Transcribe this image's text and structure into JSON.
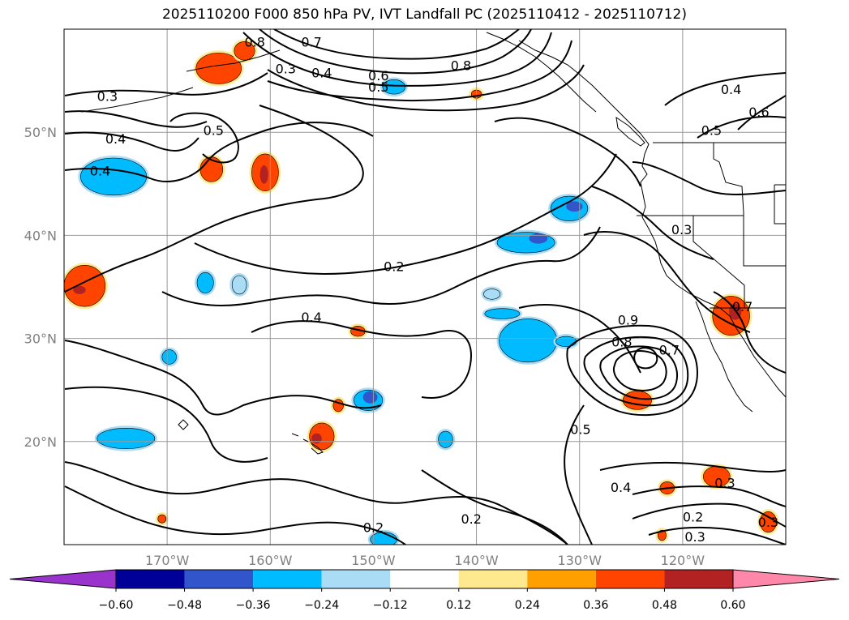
{
  "chart_data": {
    "type": "contour-map",
    "title": "2025110200 F000 850 hPa PV, IVT Landfall PC (2025110412 - 2025110712)",
    "lon_range": [
      -180,
      -110
    ],
    "lat_range": [
      10,
      60
    ],
    "x_ticks": [
      {
        "lon": -170,
        "label": "170°W"
      },
      {
        "lon": -160,
        "label": "160°W"
      },
      {
        "lon": -150,
        "label": "150°W"
      },
      {
        "lon": -140,
        "label": "140°W"
      },
      {
        "lon": -130,
        "label": "130°W"
      },
      {
        "lon": -120,
        "label": "120°W"
      }
    ],
    "y_ticks": [
      {
        "lat": 20,
        "label": "20°N"
      },
      {
        "lat": 30,
        "label": "30°N"
      },
      {
        "lat": 40,
        "label": "40°N"
      },
      {
        "lat": 50,
        "label": "50°N"
      }
    ],
    "grid": true,
    "colorbar": {
      "orientation": "horizontal",
      "extend": "both",
      "levels": [
        "−0.60",
        "−0.48",
        "−0.36",
        "−0.24",
        "−0.12",
        "0.12",
        "0.24",
        "0.36",
        "0.48",
        "0.60"
      ],
      "colors": [
        "#9933cc",
        "#000099",
        "#3355cc",
        "#00bbff",
        "#aaddf5",
        "#ffffff",
        "#ffe98f",
        "#ffa000",
        "#ff4400",
        "#b22222",
        "#ff88aa"
      ]
    },
    "pv_contour_labels": [
      {
        "lon": -161.5,
        "lat": 58.8,
        "text": "0.8"
      },
      {
        "lon": -156,
        "lat": 58.8,
        "text": "0.7"
      },
      {
        "lon": -141.5,
        "lat": 56.5,
        "text": "0.8"
      },
      {
        "lon": -149.5,
        "lat": 55.5,
        "text": "0.6"
      },
      {
        "lon": -158.5,
        "lat": 56.2,
        "text": "0.3"
      },
      {
        "lon": -155,
        "lat": 55.8,
        "text": "0.4"
      },
      {
        "lon": -149.5,
        "lat": 54.4,
        "text": "0.5"
      },
      {
        "lon": -175.8,
        "lat": 53.5,
        "text": "0.3"
      },
      {
        "lon": -165.5,
        "lat": 50.2,
        "text": "0.5"
      },
      {
        "lon": -175,
        "lat": 49.4,
        "text": "0.4"
      },
      {
        "lon": -176.5,
        "lat": 46.3,
        "text": "0.4"
      },
      {
        "lon": -115.3,
        "lat": 54.2,
        "text": "0.4"
      },
      {
        "lon": -112.6,
        "lat": 52,
        "text": "0.6"
      },
      {
        "lon": -117.2,
        "lat": 50.2,
        "text": "0.5"
      },
      {
        "lon": -120.1,
        "lat": 40.6,
        "text": "0.3"
      },
      {
        "lon": -148,
        "lat": 37,
        "text": "0.2"
      },
      {
        "lon": -156,
        "lat": 32.1,
        "text": "0.4"
      },
      {
        "lon": -125.3,
        "lat": 31.8,
        "text": "0.9"
      },
      {
        "lon": -125.9,
        "lat": 29.7,
        "text": "0.8"
      },
      {
        "lon": -121.3,
        "lat": 28.9,
        "text": "0.7"
      },
      {
        "lon": -114.2,
        "lat": 33.1,
        "text": "0.7"
      },
      {
        "lon": -129.9,
        "lat": 21.2,
        "text": "0.5"
      },
      {
        "lon": -126,
        "lat": 15.6,
        "text": "0.4"
      },
      {
        "lon": -115.9,
        "lat": 16,
        "text": "0.3"
      },
      {
        "lon": -119,
        "lat": 12.7,
        "text": "0.2"
      },
      {
        "lon": -111.7,
        "lat": 12.2,
        "text": "0.3"
      },
      {
        "lon": -118.8,
        "lat": 10.8,
        "text": "0.3"
      },
      {
        "lon": -140.5,
        "lat": 12.5,
        "text": "0.2"
      },
      {
        "lon": -150,
        "lat": 11.7,
        "text": "0.2"
      }
    ],
    "fill_patches": [
      {
        "lon": -175.2,
        "lat": 45.7,
        "rx": 3.2,
        "ry": 1.8,
        "level": "-0.36"
      },
      {
        "lon": -174,
        "lat": 20.3,
        "rx": 2.8,
        "ry": 1.0,
        "level": "-0.36"
      },
      {
        "lon": -135.2,
        "lat": 39.3,
        "rx": 2.8,
        "ry": 1.0,
        "level": "-0.36"
      },
      {
        "lon": -131,
        "lat": 42.6,
        "rx": 1.8,
        "ry": 1.2,
        "level": "-0.36"
      },
      {
        "lon": -135,
        "lat": 29.8,
        "rx": 2.8,
        "ry": 2.1,
        "level": "-0.36"
      },
      {
        "lon": -137.5,
        "lat": 32.4,
        "rx": 1.7,
        "ry": 0.5,
        "level": "-0.36"
      },
      {
        "lon": -150.5,
        "lat": 24,
        "rx": 1.4,
        "ry": 1.0,
        "level": "-0.36"
      },
      {
        "lon": -143,
        "lat": 20.2,
        "rx": 0.7,
        "ry": 0.8,
        "level": "-0.36"
      },
      {
        "lon": -149,
        "lat": 10.5,
        "rx": 1.3,
        "ry": 0.7,
        "level": "-0.36"
      },
      {
        "lon": -166.3,
        "lat": 35.4,
        "rx": 0.8,
        "ry": 1.0,
        "level": "-0.36"
      },
      {
        "lon": -163,
        "lat": 35.2,
        "rx": 0.7,
        "ry": 0.9,
        "level": "-0.24"
      },
      {
        "lon": -148,
        "lat": 54.4,
        "rx": 1.1,
        "ry": 0.7,
        "level": "-0.36"
      },
      {
        "lon": -131.3,
        "lat": 29.7,
        "rx": 1.0,
        "ry": 0.5,
        "level": "-0.36"
      },
      {
        "lon": -169.8,
        "lat": 28.2,
        "rx": 0.7,
        "ry": 0.7,
        "level": "-0.36"
      },
      {
        "lon": -138.5,
        "lat": 34.3,
        "rx": 0.8,
        "ry": 0.5,
        "level": "-0.24"
      },
      {
        "lon": -165,
        "lat": 56.2,
        "rx": 2.2,
        "ry": 1.5,
        "level": "0.36"
      },
      {
        "lon": -160.5,
        "lat": 46.1,
        "rx": 1.3,
        "ry": 1.8,
        "level": "0.36"
      },
      {
        "lon": -165.7,
        "lat": 46.4,
        "rx": 1.1,
        "ry": 1.2,
        "level": "0.36"
      },
      {
        "lon": -178,
        "lat": 35.1,
        "rx": 2.0,
        "ry": 2.0,
        "level": "0.36"
      },
      {
        "lon": -115.3,
        "lat": 32.2,
        "rx": 1.8,
        "ry": 1.9,
        "level": "0.36"
      },
      {
        "lon": -124.4,
        "lat": 24,
        "rx": 1.4,
        "ry": 0.9,
        "level": "0.36"
      },
      {
        "lon": -155,
        "lat": 20.5,
        "rx": 1.2,
        "ry": 1.3,
        "level": "0.36"
      },
      {
        "lon": -116.7,
        "lat": 16.6,
        "rx": 1.3,
        "ry": 1.0,
        "level": "0.36"
      },
      {
        "lon": -111.7,
        "lat": 12.2,
        "rx": 0.8,
        "ry": 1.0,
        "level": "0.36"
      },
      {
        "lon": -121.5,
        "lat": 15.5,
        "rx": 0.7,
        "ry": 0.6,
        "level": "0.36"
      },
      {
        "lon": -151.5,
        "lat": 30.7,
        "rx": 0.7,
        "ry": 0.5,
        "level": "0.36"
      },
      {
        "lon": -153.4,
        "lat": 23.5,
        "rx": 0.5,
        "ry": 0.6,
        "level": "0.36"
      },
      {
        "lon": -122,
        "lat": 10.9,
        "rx": 0.4,
        "ry": 0.5,
        "level": "0.36"
      },
      {
        "lon": -170.5,
        "lat": 12.5,
        "rx": 0.4,
        "ry": 0.4,
        "level": "0.36"
      },
      {
        "lon": -162.5,
        "lat": 57.9,
        "rx": 1.0,
        "ry": 0.9,
        "level": "0.36"
      },
      {
        "lon": -140,
        "lat": 53.7,
        "rx": 0.5,
        "ry": 0.4,
        "level": "0.36"
      }
    ],
    "cores": [
      {
        "lon": -130.5,
        "lat": 42.8,
        "rx": 0.8,
        "ry": 0.5,
        "level": "-0.48"
      },
      {
        "lon": -134,
        "lat": 39.7,
        "rx": 0.9,
        "ry": 0.5,
        "level": "-0.48"
      },
      {
        "lon": -150.3,
        "lat": 24.3,
        "rx": 0.7,
        "ry": 0.6,
        "level": "-0.48"
      },
      {
        "lon": -160.6,
        "lat": 45.9,
        "rx": 0.4,
        "ry": 0.9,
        "level": "0.48"
      },
      {
        "lon": -178.5,
        "lat": 34.7,
        "rx": 0.6,
        "ry": 0.4,
        "level": "0.48"
      },
      {
        "lon": -114.9,
        "lat": 32.6,
        "rx": 0.6,
        "ry": 0.8,
        "level": "0.48"
      },
      {
        "lon": -155.5,
        "lat": 20.3,
        "rx": 0.5,
        "ry": 0.5,
        "level": "0.48"
      }
    ]
  }
}
